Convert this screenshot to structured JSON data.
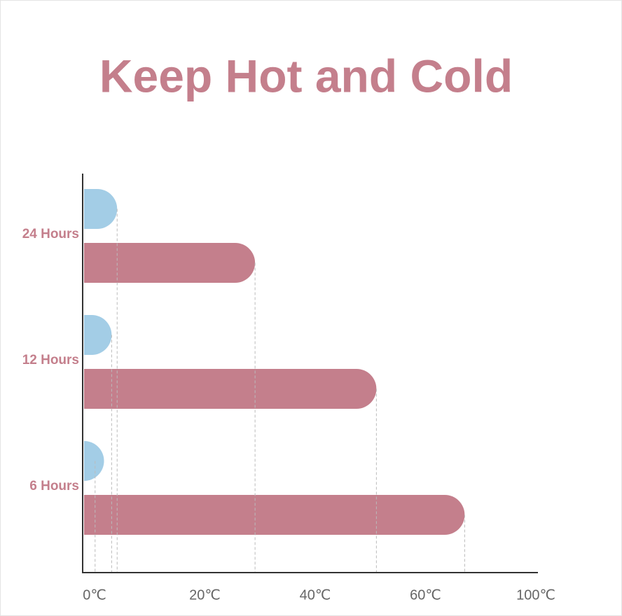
{
  "chart_data": {
    "type": "hbar",
    "title": "Keep Hot and Cold",
    "categories": [
      "24 Hours",
      "12 Hours",
      "6 Hours"
    ],
    "series": [
      {
        "color": "#a3cde6",
        "values": [
          6,
          5,
          2
        ]
      },
      {
        "color": "#c47f8c",
        "values": [
          31,
          53,
          78
        ]
      }
    ],
    "xlim": [
      0,
      100
    ],
    "xticks": [
      {
        "value": 0,
        "label": "0℃"
      },
      {
        "value": 20,
        "label": "20℃"
      },
      {
        "value": 40,
        "label": "40℃"
      },
      {
        "value": 60,
        "label": "60℃"
      },
      {
        "value": 100,
        "label": "100℃"
      }
    ]
  }
}
